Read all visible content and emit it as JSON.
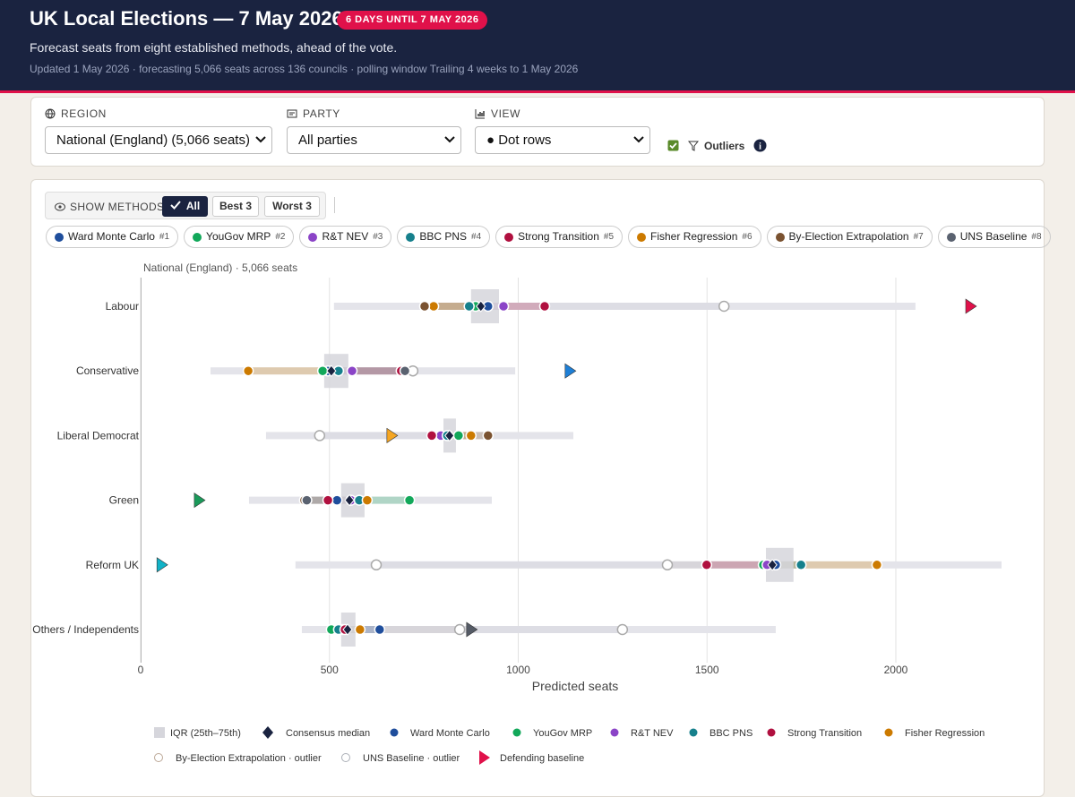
{
  "header": {
    "title": "UK Local Elections — 7 May 2026",
    "badge": "6 DAYS UNTIL 7 MAY 2026",
    "subtitle": "Forecast seats from eight established methods, ahead of the vote.",
    "updated": "Updated 1 May 2026 · forecasting 5,066 seats across 136 councils · polling window Trailing 4 weeks to 1 May 2026"
  },
  "controls": {
    "region_label": "REGION",
    "region_value": "National (England) (5,066 seats)",
    "party_label": "PARTY",
    "party_value": "All parties",
    "view_label": "VIEW",
    "view_value": "● Dot rows",
    "outliers_label": "Outliers",
    "outliers_checked": true
  },
  "methods_toggle": {
    "label": "SHOW METHODS",
    "buttons": [
      "All",
      "Best 3",
      "Worst 3"
    ],
    "active": "All"
  },
  "chart_data": {
    "type": "dot_range",
    "subtitle": "National (England) · 5,066 seats",
    "x_label": "Predicted seats",
    "categories": [
      "Labour",
      "Conservative",
      "Liberal Democrat",
      "Green",
      "Reform UK",
      "Others / Independents"
    ],
    "xlim": [
      0,
      2280
    ],
    "xticks": [
      0,
      500,
      1000,
      1500,
      2000
    ],
    "grid": true,
    "series": [
      {
        "name": "Ward Monte Carlo",
        "rank": "#1",
        "color": "#1f4e9c",
        "values": [
          920,
          496,
          814,
          520,
          1682,
          633
        ],
        "outliers": [
          false,
          false,
          false,
          false,
          false,
          false
        ]
      },
      {
        "name": "YouGov MRP",
        "rank": "#2",
        "color": "#12a85a",
        "values": [
          887,
          482,
          842,
          712,
          1649,
          505
        ],
        "outliers": [
          false,
          false,
          false,
          false,
          false,
          false
        ]
      },
      {
        "name": "R&T NEV",
        "rank": "#3",
        "color": "#8b44c7",
        "values": [
          961,
          560,
          795,
          557,
          1659,
          534
        ],
        "outliers": [
          false,
          false,
          false,
          false,
          false,
          false
        ]
      },
      {
        "name": "BBC PNS",
        "rank": "#4",
        "color": "#16808c",
        "values": [
          870,
          524,
          812,
          579,
          1749,
          524
        ],
        "outliers": [
          false,
          false,
          false,
          false,
          false,
          false
        ]
      },
      {
        "name": "Strong Transition",
        "rank": "#5",
        "color": "#b0103f",
        "values": [
          1070,
          690,
          771,
          496,
          1499,
          541
        ],
        "outliers": [
          false,
          false,
          false,
          false,
          false,
          false
        ]
      },
      {
        "name": "Fisher Regression",
        "rank": "#6",
        "color": "#cc7a00",
        "values": [
          776,
          285,
          875,
          600,
          1950,
          581
        ],
        "outliers": [
          false,
          false,
          false,
          false,
          false,
          false
        ]
      },
      {
        "name": "By-Election Extrapolation",
        "rank": "#7",
        "color": "#7a5230",
        "values": [
          752,
          721,
          920,
          434,
          1395,
          845
        ],
        "outliers": [
          false,
          true,
          false,
          false,
          true,
          true
        ]
      },
      {
        "name": "UNS Baseline",
        "rank": "#8",
        "color": "#5a6270",
        "values": [
          1545,
          700,
          474,
          440,
          624,
          1276
        ],
        "outliers": [
          true,
          false,
          true,
          false,
          true,
          true
        ]
      }
    ],
    "median": [
      901,
      505,
      818,
      553,
      1673,
      548
    ],
    "iqr_low": [
      875,
      486,
      802,
      531,
      1656,
      531
    ],
    "iqr_high": [
      949,
      550,
      835,
      593,
      1729,
      569
    ],
    "range_low": [
      512,
      185,
      332,
      287,
      410,
      427
    ],
    "range_high": [
      2052,
      992,
      1146,
      930,
      2280,
      1682
    ],
    "baseline": [
      2197,
      1136,
      664,
      154,
      55,
      875
    ],
    "baseline_colors": [
      "#e0114a",
      "#1e7fd6",
      "#f5a623",
      "#1a9a5a",
      "#12b2c7",
      "#555b66"
    ],
    "median_color": "#1a2340",
    "legend": {
      "iqr": "IQR (25th–75th)",
      "median": "Consensus median",
      "outliers": [
        "By-Election Extrapolation · outlier",
        "UNS Baseline · outlier"
      ],
      "baseline": "Defending baseline"
    }
  }
}
